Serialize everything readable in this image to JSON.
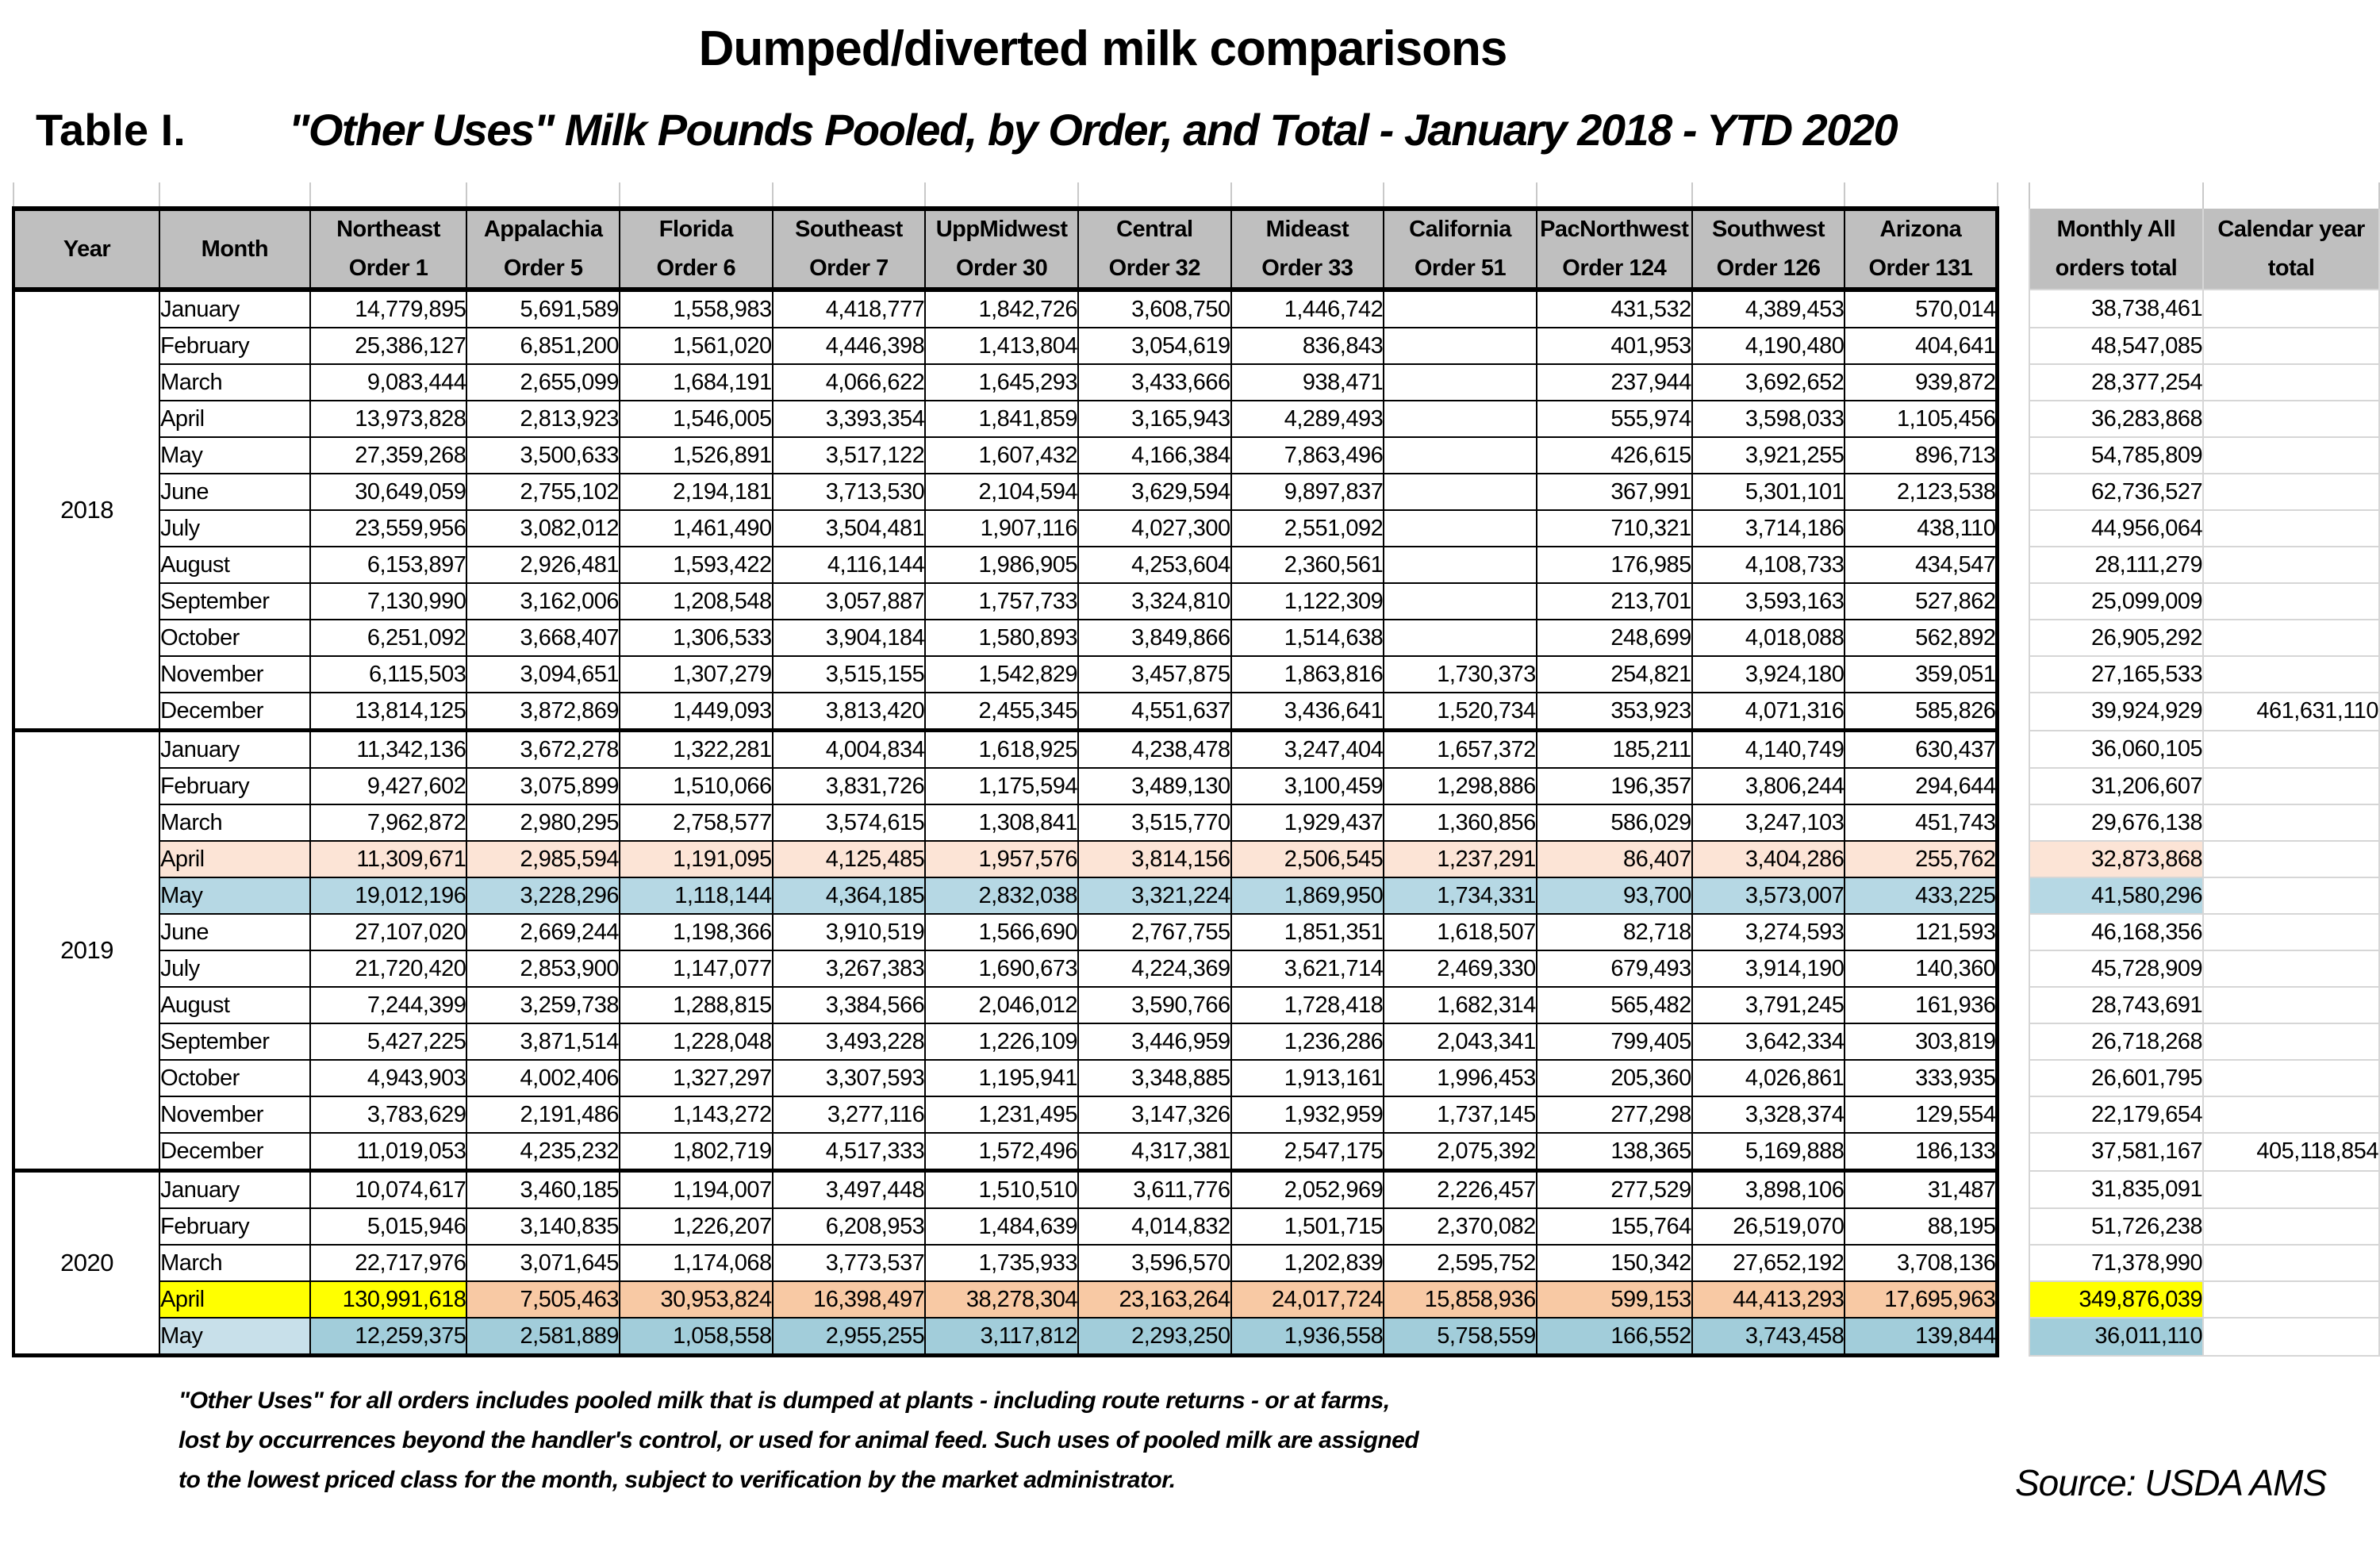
{
  "title": "Dumped/diverted milk comparisons",
  "table_label": "Table I.",
  "subtitle": "\"Other Uses\" Milk Pounds Pooled, by Order, and Total - January 2018 - YTD 2020",
  "header": {
    "year": "Year",
    "month": "Month",
    "monthly_total": {
      "line1": "Monthly All",
      "line2": "orders total"
    },
    "calendar_total": {
      "line1": "Calendar year",
      "line2": "total"
    }
  },
  "order_columns": [
    {
      "region": "Northeast",
      "order": "Order 1"
    },
    {
      "region": "Appalachia",
      "order": "Order 5"
    },
    {
      "region": "Florida",
      "order": "Order 6"
    },
    {
      "region": "Southeast",
      "order": "Order 7"
    },
    {
      "region": "UppMidwest",
      "order": "Order 30"
    },
    {
      "region": "Central",
      "order": "Order 32"
    },
    {
      "region": "Mideast",
      "order": "Order 33"
    },
    {
      "region": "California",
      "order": "Order 51"
    },
    {
      "region": "PacNorthwest",
      "order": "Order 124"
    },
    {
      "region": "Southwest",
      "order": "Order 126"
    },
    {
      "region": "Arizona",
      "order": "Order 131"
    }
  ],
  "colors": {
    "header_bg": "#bfbfbf",
    "peach_2019": "#fce4d6",
    "blue_2019": "#b6d8e4",
    "yellow": "#ffff00",
    "peach_2020": "#f8c9a4",
    "blue_2020": "#a2cdda",
    "blue_2020_month": "#c8e0ea",
    "grid_light": "#d6d6d6",
    "border_dark": "#000000"
  },
  "years": [
    {
      "year": "2018",
      "rows": [
        {
          "m": "January",
          "v": [
            "14,779,895",
            "5,691,589",
            "1,558,983",
            "4,418,777",
            "1,842,726",
            "3,608,750",
            "1,446,742",
            "",
            "431,532",
            "4,389,453",
            "570,014"
          ],
          "t": "38,738,461",
          "c": ""
        },
        {
          "m": "February",
          "v": [
            "25,386,127",
            "6,851,200",
            "1,561,020",
            "4,446,398",
            "1,413,804",
            "3,054,619",
            "836,843",
            "",
            "401,953",
            "4,190,480",
            "404,641"
          ],
          "t": "48,547,085",
          "c": ""
        },
        {
          "m": "March",
          "v": [
            "9,083,444",
            "2,655,099",
            "1,684,191",
            "4,066,622",
            "1,645,293",
            "3,433,666",
            "938,471",
            "",
            "237,944",
            "3,692,652",
            "939,872"
          ],
          "t": "28,377,254",
          "c": ""
        },
        {
          "m": "April",
          "v": [
            "13,973,828",
            "2,813,923",
            "1,546,005",
            "3,393,354",
            "1,841,859",
            "3,165,943",
            "4,289,493",
            "",
            "555,974",
            "3,598,033",
            "1,105,456"
          ],
          "t": "36,283,868",
          "c": ""
        },
        {
          "m": "May",
          "v": [
            "27,359,268",
            "3,500,633",
            "1,526,891",
            "3,517,122",
            "1,607,432",
            "4,166,384",
            "7,863,496",
            "",
            "426,615",
            "3,921,255",
            "896,713"
          ],
          "t": "54,785,809",
          "c": ""
        },
        {
          "m": "June",
          "v": [
            "30,649,059",
            "2,755,102",
            "2,194,181",
            "3,713,530",
            "2,104,594",
            "3,629,594",
            "9,897,837",
            "",
            "367,991",
            "5,301,101",
            "2,123,538"
          ],
          "t": "62,736,527",
          "c": ""
        },
        {
          "m": "July",
          "v": [
            "23,559,956",
            "3,082,012",
            "1,461,490",
            "3,504,481",
            "1,907,116",
            "4,027,300",
            "2,551,092",
            "",
            "710,321",
            "3,714,186",
            "438,110"
          ],
          "t": "44,956,064",
          "c": ""
        },
        {
          "m": "August",
          "v": [
            "6,153,897",
            "2,926,481",
            "1,593,422",
            "4,116,144",
            "1,986,905",
            "4,253,604",
            "2,360,561",
            "",
            "176,985",
            "4,108,733",
            "434,547"
          ],
          "t": "28,111,279",
          "c": ""
        },
        {
          "m": "September",
          "v": [
            "7,130,990",
            "3,162,006",
            "1,208,548",
            "3,057,887",
            "1,757,733",
            "3,324,810",
            "1,122,309",
            "",
            "213,701",
            "3,593,163",
            "527,862"
          ],
          "t": "25,099,009",
          "c": ""
        },
        {
          "m": "October",
          "v": [
            "6,251,092",
            "3,668,407",
            "1,306,533",
            "3,904,184",
            "1,580,893",
            "3,849,866",
            "1,514,638",
            "",
            "248,699",
            "4,018,088",
            "562,892"
          ],
          "t": "26,905,292",
          "c": ""
        },
        {
          "m": "November",
          "v": [
            "6,115,503",
            "3,094,651",
            "1,307,279",
            "3,515,155",
            "1,542,829",
            "3,457,875",
            "1,863,816",
            "1,730,373",
            "254,821",
            "3,924,180",
            "359,051"
          ],
          "t": "27,165,533",
          "c": ""
        },
        {
          "m": "December",
          "v": [
            "13,814,125",
            "3,872,869",
            "1,449,093",
            "3,813,420",
            "2,455,345",
            "4,551,637",
            "3,436,641",
            "1,520,734",
            "353,923",
            "4,071,316",
            "585,826"
          ],
          "t": "39,924,929",
          "c": "461,631,110"
        }
      ]
    },
    {
      "year": "2019",
      "rows": [
        {
          "m": "January",
          "v": [
            "11,342,136",
            "3,672,278",
            "1,322,281",
            "4,004,834",
            "1,618,925",
            "4,238,478",
            "3,247,404",
            "1,657,372",
            "185,211",
            "4,140,749",
            "630,437"
          ],
          "t": "36,060,105",
          "c": ""
        },
        {
          "m": "February",
          "v": [
            "9,427,602",
            "3,075,899",
            "1,510,066",
            "3,831,726",
            "1,175,594",
            "3,489,130",
            "3,100,459",
            "1,298,886",
            "196,357",
            "3,806,244",
            "294,644"
          ],
          "t": "31,206,607",
          "c": ""
        },
        {
          "m": "March",
          "v": [
            "7,962,872",
            "2,980,295",
            "2,758,577",
            "3,574,615",
            "1,308,841",
            "3,515,770",
            "1,929,437",
            "1,360,856",
            "586,029",
            "3,247,103",
            "451,743"
          ],
          "t": "29,676,138",
          "c": ""
        },
        {
          "m": "April",
          "v": [
            "11,309,671",
            "2,985,594",
            "1,191,095",
            "4,125,485",
            "1,957,576",
            "3,814,156",
            "2,506,545",
            "1,237,291",
            "86,407",
            "3,404,286",
            "255,762"
          ],
          "t": "32,873,868",
          "c": "",
          "hl": {
            "month": "peach_2019",
            "cells": "peach_2019",
            "total": "peach_2019"
          }
        },
        {
          "m": "May",
          "v": [
            "19,012,196",
            "3,228,296",
            "1,118,144",
            "4,364,185",
            "2,832,038",
            "3,321,224",
            "1,869,950",
            "1,734,331",
            "93,700",
            "3,573,007",
            "433,225"
          ],
          "t": "41,580,296",
          "c": "",
          "hl": {
            "month": "blue_2019",
            "cells": "blue_2019",
            "total": "blue_2019"
          }
        },
        {
          "m": "June",
          "v": [
            "27,107,020",
            "2,669,244",
            "1,198,366",
            "3,910,519",
            "1,566,690",
            "2,767,755",
            "1,851,351",
            "1,618,507",
            "82,718",
            "3,274,593",
            "121,593"
          ],
          "t": "46,168,356",
          "c": ""
        },
        {
          "m": "July",
          "v": [
            "21,720,420",
            "2,853,900",
            "1,147,077",
            "3,267,383",
            "1,690,673",
            "4,224,369",
            "3,621,714",
            "2,469,330",
            "679,493",
            "3,914,190",
            "140,360"
          ],
          "t": "45,728,909",
          "c": ""
        },
        {
          "m": "August",
          "v": [
            "7,244,399",
            "3,259,738",
            "1,288,815",
            "3,384,566",
            "2,046,012",
            "3,590,766",
            "1,728,418",
            "1,682,314",
            "565,482",
            "3,791,245",
            "161,936"
          ],
          "t": "28,743,691",
          "c": ""
        },
        {
          "m": "September",
          "v": [
            "5,427,225",
            "3,871,514",
            "1,228,048",
            "3,493,228",
            "1,226,109",
            "3,446,959",
            "1,236,286",
            "2,043,341",
            "799,405",
            "3,642,334",
            "303,819"
          ],
          "t": "26,718,268",
          "c": ""
        },
        {
          "m": "October",
          "v": [
            "4,943,903",
            "4,002,406",
            "1,327,297",
            "3,307,593",
            "1,195,941",
            "3,348,885",
            "1,913,161",
            "1,996,453",
            "205,360",
            "4,026,861",
            "333,935"
          ],
          "t": "26,601,795",
          "c": ""
        },
        {
          "m": "November",
          "v": [
            "3,783,629",
            "2,191,486",
            "1,143,272",
            "3,277,116",
            "1,231,495",
            "3,147,326",
            "1,932,959",
            "1,737,145",
            "277,298",
            "3,328,374",
            "129,554"
          ],
          "t": "22,179,654",
          "c": ""
        },
        {
          "m": "December",
          "v": [
            "11,019,053",
            "4,235,232",
            "1,802,719",
            "4,517,333",
            "1,572,496",
            "4,317,381",
            "2,547,175",
            "2,075,392",
            "138,365",
            "5,169,888",
            "186,133"
          ],
          "t": "37,581,167",
          "c": "405,118,854"
        }
      ]
    },
    {
      "year": "2020",
      "rows": [
        {
          "m": "January",
          "v": [
            "10,074,617",
            "3,460,185",
            "1,194,007",
            "3,497,448",
            "1,510,510",
            "3,611,776",
            "2,052,969",
            "2,226,457",
            "277,529",
            "3,898,106",
            "31,487"
          ],
          "t": "31,835,091",
          "c": ""
        },
        {
          "m": "February",
          "v": [
            "5,015,946",
            "3,140,835",
            "1,226,207",
            "6,208,953",
            "1,484,639",
            "4,014,832",
            "1,501,715",
            "2,370,082",
            "155,764",
            "26,519,070",
            "88,195"
          ],
          "t": "51,726,238",
          "c": ""
        },
        {
          "m": "March",
          "v": [
            "22,717,976",
            "3,071,645",
            "1,174,068",
            "3,773,537",
            "1,735,933",
            "3,596,570",
            "1,202,839",
            "2,595,752",
            "150,342",
            "27,652,192",
            "3,708,136"
          ],
          "t": "71,378,990",
          "c": ""
        },
        {
          "m": "April",
          "v": [
            "130,991,618",
            "7,505,463",
            "30,953,824",
            "16,398,497",
            "38,278,304",
            "23,163,264",
            "24,017,724",
            "15,858,936",
            "599,153",
            "44,413,293",
            "17,695,963"
          ],
          "t": "349,876,039",
          "c": "",
          "hl": {
            "month": "yellow",
            "cell0": "yellow",
            "cells": "peach_2020",
            "total": "yellow"
          }
        },
        {
          "m": "May",
          "v": [
            "12,259,375",
            "2,581,889",
            "1,058,558",
            "2,955,255",
            "3,117,812",
            "2,293,250",
            "1,936,558",
            "5,758,559",
            "166,552",
            "3,743,458",
            "139,844"
          ],
          "t": "36,011,110",
          "c": "",
          "hl": {
            "month": "blue_2020_month",
            "cells": "blue_2020",
            "total": "blue_2020"
          }
        }
      ]
    }
  ],
  "footnotes": [
    "\"Other Uses\" for all orders includes pooled milk that is dumped at plants - including route returns - or at farms,",
    "lost by occurrences beyond the handler's control, or used for animal feed.  Such uses of pooled milk are assigned",
    "to the lowest priced class for the month, subject to verification by the market administrator."
  ],
  "source": "Source: USDA AMS"
}
